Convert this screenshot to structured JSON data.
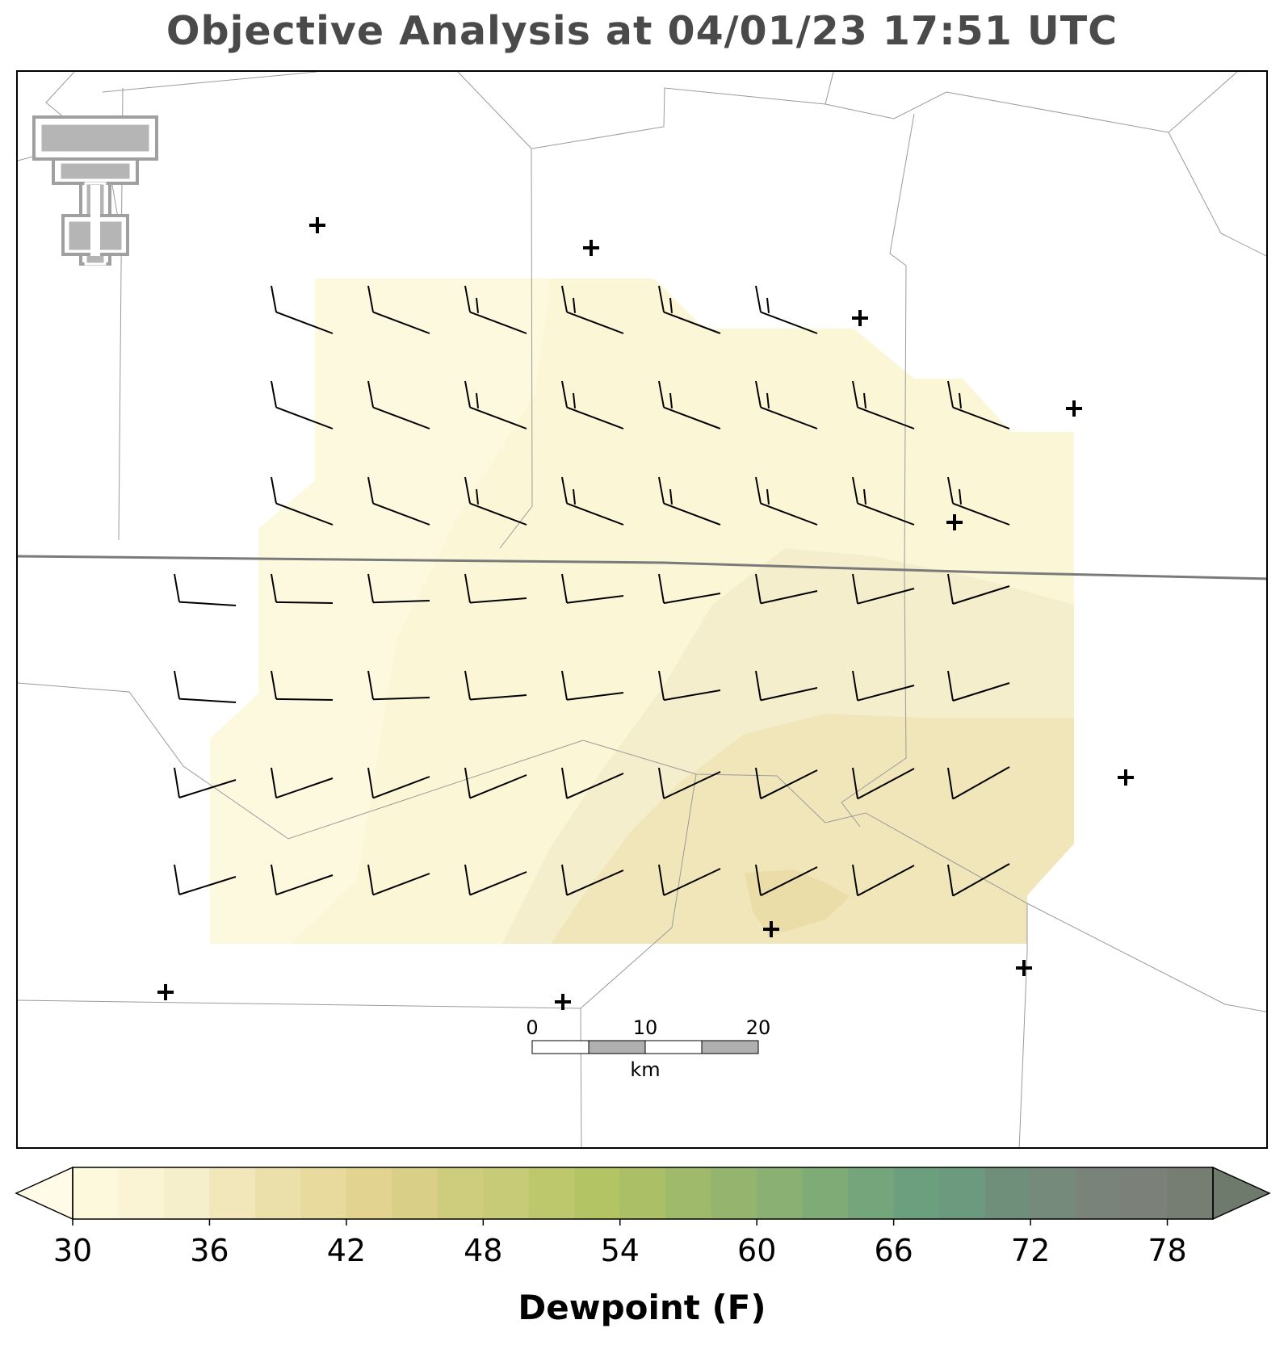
{
  "title": "Objective Analysis at 04/01/23 17:51 UTC",
  "colorbar": {
    "label": "Dewpoint (F)",
    "ticks": [
      "30",
      "36",
      "42",
      "48",
      "54",
      "60",
      "66",
      "72",
      "78"
    ],
    "levels": [
      30,
      32,
      34,
      36,
      38,
      40,
      42,
      44,
      46,
      48,
      50,
      52,
      54,
      56,
      58,
      60,
      62,
      64,
      66,
      68,
      70,
      72,
      74,
      76,
      78,
      80
    ],
    "colors": [
      "#fdf9dd",
      "#faf4d5",
      "#f6efcc",
      "#f1e7bb",
      "#ece0aa",
      "#e8d99c",
      "#e2d390",
      "#d9cf86",
      "#cecc7d",
      "#c7cb78",
      "#bdc86c",
      "#b3c465",
      "#abbf67",
      "#a0ba6b",
      "#95b56f",
      "#8ab073",
      "#7fab77",
      "#75a67b",
      "#6b9f7d",
      "#6c9a7f",
      "#708f7b",
      "#768a7b",
      "#7a837a",
      "#7b8079",
      "#767e74"
    ],
    "under_color": "#fffbe6",
    "over_color": "#6e7a6c"
  },
  "scale_bar": {
    "ticks": [
      "0",
      "10",
      "20"
    ],
    "unit": "km"
  },
  "logo": {
    "name": "double-T-logo",
    "color": "#a0a0a0"
  },
  "station_marker": "+",
  "map_colors": {
    "county_line": "#999999",
    "state_line": "#808080",
    "barb": "#000000"
  }
}
